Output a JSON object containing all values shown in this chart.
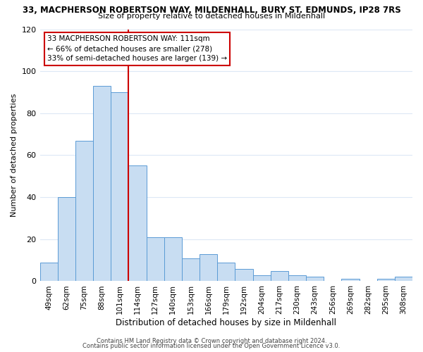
{
  "title_main": "33, MACPHERSON ROBERTSON WAY, MILDENHALL, BURY ST. EDMUNDS, IP28 7RS",
  "title_sub": "Size of property relative to detached houses in Mildenhall",
  "xlabel": "Distribution of detached houses by size in Mildenhall",
  "ylabel": "Number of detached properties",
  "categories": [
    "49sqm",
    "62sqm",
    "75sqm",
    "88sqm",
    "101sqm",
    "114sqm",
    "127sqm",
    "140sqm",
    "153sqm",
    "166sqm",
    "179sqm",
    "192sqm",
    "204sqm",
    "217sqm",
    "230sqm",
    "243sqm",
    "256sqm",
    "269sqm",
    "282sqm",
    "295sqm",
    "308sqm"
  ],
  "values": [
    9,
    40,
    67,
    93,
    90,
    55,
    21,
    21,
    11,
    13,
    9,
    6,
    3,
    5,
    3,
    2,
    0,
    1,
    0,
    1,
    2
  ],
  "bar_color": "#c8ddf2",
  "bar_edge_color": "#5b9bd5",
  "highlight_line_color": "#cc0000",
  "ylim": [
    0,
    120
  ],
  "yticks": [
    0,
    20,
    40,
    60,
    80,
    100,
    120
  ],
  "annotation_title": "33 MACPHERSON ROBERTSON WAY: 111sqm",
  "annotation_line1": "← 66% of detached houses are smaller (278)",
  "annotation_line2": "33% of semi-detached houses are larger (139) →",
  "annotation_box_color": "#ffffff",
  "annotation_box_edge": "#cc0000",
  "footer_line1": "Contains HM Land Registry data © Crown copyright and database right 2024.",
  "footer_line2": "Contains public sector information licensed under the Open Government Licence v3.0.",
  "background_color": "#ffffff",
  "grid_color": "#dce8f5"
}
